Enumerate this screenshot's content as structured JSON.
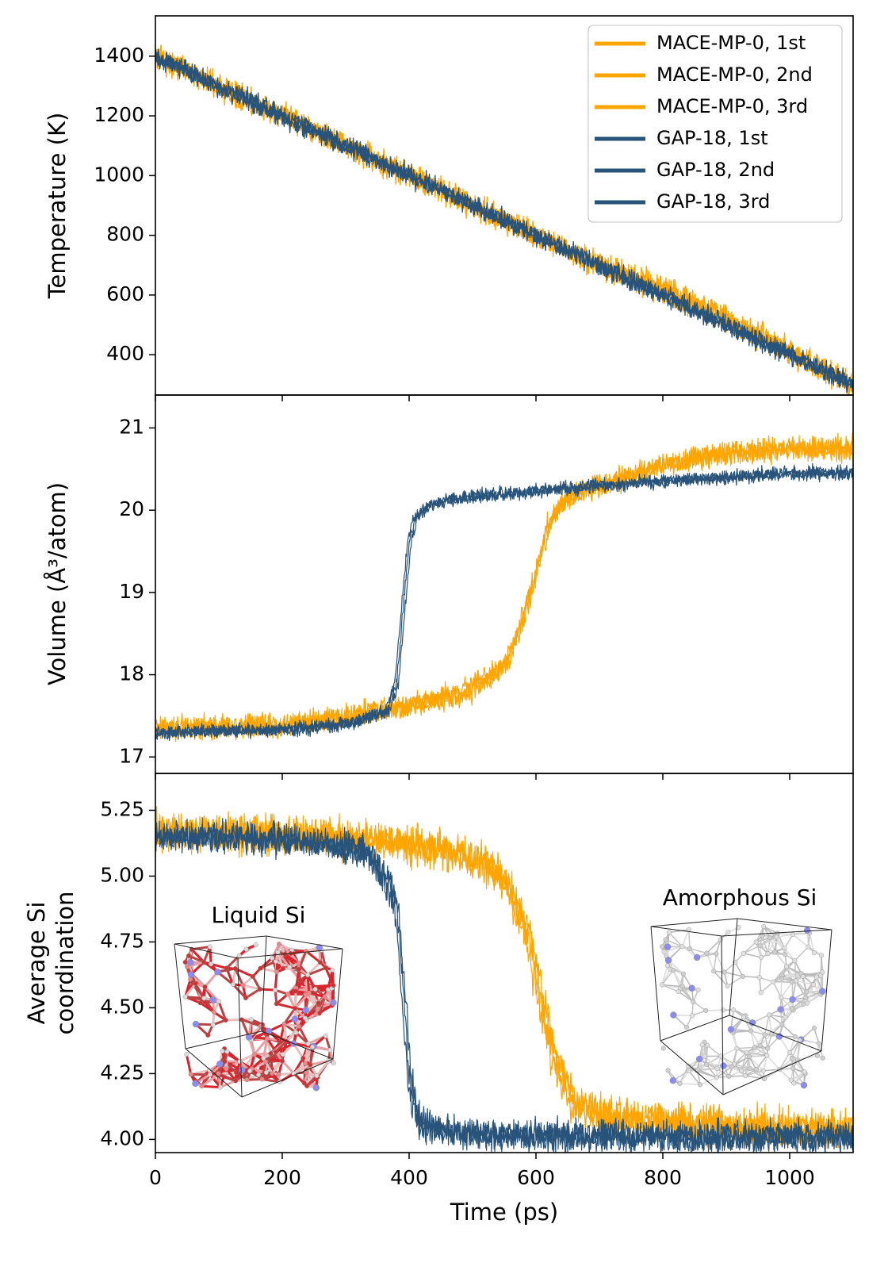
{
  "colors": {
    "mace": "#ffa500",
    "gap": "#28537a",
    "axis": "#000000",
    "liquid_bond": "#d9242c",
    "liquid_bond_light": "#eaa0a4",
    "amorphous_bond": "#c8c8c8",
    "minority_atom": "#8c8cf0"
  },
  "chart_data": [
    {
      "type": "line",
      "panel": "temperature",
      "title": "",
      "xlabel": "",
      "ylabel": "Temperature (K)",
      "xlim": [
        0,
        1100
      ],
      "ylim": [
        265,
        1535
      ],
      "xticks": [
        0,
        200,
        400,
        600,
        800,
        1000
      ],
      "yticks": [
        400,
        600,
        800,
        1000,
        1200,
        1400
      ],
      "ytick_labels": [
        "400",
        "600",
        "800",
        "1000",
        "1200",
        "1400"
      ],
      "legend_placement": "top-right",
      "series": [
        {
          "name": "MACE-MP-0, 1st",
          "color": "#ffa500",
          "noise": 35,
          "x": [
            0,
            100,
            200,
            300,
            400,
            500,
            600,
            700,
            800,
            900,
            1000,
            1100
          ],
          "y": [
            1400,
            1300,
            1200,
            1100,
            1000,
            900,
            800,
            700,
            620,
            520,
            410,
            300
          ]
        },
        {
          "name": "MACE-MP-0, 2nd",
          "color": "#ffa500",
          "noise": 35,
          "x": [
            0,
            100,
            200,
            300,
            400,
            500,
            600,
            700,
            800,
            900,
            1000,
            1100
          ],
          "y": [
            1405,
            1300,
            1200,
            1100,
            1000,
            900,
            800,
            700,
            615,
            520,
            410,
            300
          ]
        },
        {
          "name": "MACE-MP-0, 3rd",
          "color": "#ffa500",
          "noise": 35,
          "x": [
            0,
            100,
            200,
            300,
            400,
            500,
            600,
            700,
            800,
            900,
            1000,
            1100
          ],
          "y": [
            1395,
            1300,
            1200,
            1100,
            1000,
            900,
            800,
            700,
            625,
            525,
            415,
            300
          ]
        },
        {
          "name": "GAP-18, 1st",
          "color": "#28537a",
          "noise": 28,
          "x": [
            0,
            100,
            200,
            300,
            400,
            500,
            600,
            700,
            800,
            900,
            1000,
            1100
          ],
          "y": [
            1400,
            1300,
            1200,
            1100,
            1000,
            900,
            800,
            700,
            600,
            500,
            400,
            300
          ]
        },
        {
          "name": "GAP-18, 2nd",
          "color": "#28537a",
          "noise": 28,
          "x": [
            0,
            100,
            200,
            300,
            400,
            500,
            600,
            700,
            800,
            900,
            1000,
            1100
          ],
          "y": [
            1400,
            1300,
            1200,
            1100,
            1000,
            900,
            800,
            700,
            595,
            495,
            400,
            300
          ]
        },
        {
          "name": "GAP-18, 3rd",
          "color": "#28537a",
          "noise": 28,
          "x": [
            0,
            100,
            200,
            300,
            400,
            500,
            600,
            700,
            800,
            900,
            1000,
            1100
          ],
          "y": [
            1400,
            1300,
            1200,
            1100,
            1000,
            900,
            800,
            700,
            605,
            505,
            400,
            300
          ]
        }
      ]
    },
    {
      "type": "line",
      "panel": "volume",
      "title": "",
      "xlabel": "",
      "ylabel": "Volume (Å³/atom)",
      "xlim": [
        0,
        1100
      ],
      "ylim": [
        16.8,
        21.4
      ],
      "xticks": [
        0,
        200,
        400,
        600,
        800,
        1000
      ],
      "yticks": [
        17,
        18,
        19,
        20,
        21
      ],
      "ytick_labels": [
        "17",
        "18",
        "19",
        "20",
        "21"
      ],
      "series": [
        {
          "name": "MACE-MP-0, 1st",
          "color": "#ffa500",
          "noise": 0.12,
          "x": [
            0,
            200,
            300,
            380,
            450,
            500,
            550,
            580,
            600,
            620,
            650,
            700,
            800,
            900,
            1000,
            1100
          ],
          "y": [
            17.35,
            17.38,
            17.5,
            17.6,
            17.7,
            17.85,
            18.1,
            18.7,
            19.3,
            19.85,
            20.15,
            20.3,
            20.55,
            20.7,
            20.75,
            20.75
          ]
        },
        {
          "name": "MACE-MP-0, 2nd",
          "color": "#ffa500",
          "noise": 0.12,
          "x": [
            0,
            200,
            300,
            380,
            450,
            500,
            540,
            570,
            595,
            615,
            640,
            700,
            800,
            900,
            1000,
            1100
          ],
          "y": [
            17.35,
            17.38,
            17.5,
            17.6,
            17.68,
            17.8,
            18.0,
            18.5,
            19.1,
            19.7,
            20.1,
            20.3,
            20.55,
            20.7,
            20.75,
            20.75
          ]
        },
        {
          "name": "MACE-MP-0, 3rd",
          "color": "#ffa500",
          "noise": 0.12,
          "x": [
            0,
            200,
            300,
            380,
            450,
            500,
            560,
            590,
            610,
            630,
            660,
            700,
            800,
            900,
            1000,
            1100
          ],
          "y": [
            17.35,
            17.38,
            17.5,
            17.6,
            17.72,
            17.88,
            18.2,
            18.9,
            19.5,
            19.95,
            20.2,
            20.3,
            20.55,
            20.7,
            20.75,
            20.75
          ]
        },
        {
          "name": "GAP-18, 1st",
          "color": "#28537a",
          "noise": 0.07,
          "x": [
            0,
            200,
            300,
            365,
            380,
            392,
            400,
            410,
            430,
            470,
            550,
            700,
            800,
            900,
            1000,
            1100
          ],
          "y": [
            17.3,
            17.33,
            17.4,
            17.55,
            17.9,
            18.9,
            19.6,
            19.9,
            20.05,
            20.15,
            20.2,
            20.3,
            20.35,
            20.4,
            20.45,
            20.45
          ]
        },
        {
          "name": "GAP-18, 2nd",
          "color": "#28537a",
          "noise": 0.07,
          "x": [
            0,
            200,
            300,
            368,
            383,
            395,
            403,
            413,
            433,
            470,
            550,
            700,
            800,
            900,
            1000,
            1100
          ],
          "y": [
            17.3,
            17.33,
            17.4,
            17.55,
            17.9,
            18.9,
            19.6,
            19.9,
            20.05,
            20.15,
            20.2,
            20.3,
            20.35,
            20.4,
            20.45,
            20.45
          ]
        },
        {
          "name": "GAP-18, 3rd",
          "color": "#28537a",
          "noise": 0.07,
          "x": [
            0,
            200,
            300,
            362,
            377,
            389,
            397,
            407,
            427,
            470,
            550,
            700,
            800,
            900,
            1000,
            1100
          ],
          "y": [
            17.3,
            17.33,
            17.4,
            17.55,
            17.9,
            18.9,
            19.6,
            19.9,
            20.05,
            20.15,
            20.2,
            20.3,
            20.35,
            20.4,
            20.45,
            20.45
          ]
        }
      ]
    },
    {
      "type": "line",
      "panel": "coordination",
      "title": "",
      "xlabel": "Time (ps)",
      "ylabel": [
        "Average Si",
        "coordination"
      ],
      "xlim": [
        0,
        1100
      ],
      "ylim": [
        3.95,
        5.39
      ],
      "xticks": [
        0,
        200,
        400,
        600,
        800,
        1000
      ],
      "xtick_labels": [
        "0",
        "200",
        "400",
        "600",
        "800",
        "1000"
      ],
      "yticks": [
        4.0,
        4.25,
        4.5,
        4.75,
        5.0,
        5.25
      ],
      "ytick_labels": [
        "4.00",
        "4.25",
        "4.50",
        "4.75",
        "5.00",
        "5.25"
      ],
      "series": [
        {
          "name": "MACE-MP-0, 1st",
          "color": "#ffa500",
          "noise": 0.06,
          "x": [
            0,
            200,
            380,
            450,
            520,
            560,
            590,
            610,
            630,
            660,
            700,
            800,
            900,
            1000,
            1100
          ],
          "y": [
            5.17,
            5.16,
            5.13,
            5.1,
            5.05,
            4.95,
            4.75,
            4.5,
            4.3,
            4.15,
            4.09,
            4.07,
            4.05,
            4.04,
            4.04
          ]
        },
        {
          "name": "MACE-MP-0, 2nd",
          "color": "#ffa500",
          "noise": 0.06,
          "x": [
            0,
            200,
            380,
            450,
            520,
            555,
            585,
            605,
            625,
            655,
            700,
            800,
            900,
            1000,
            1100
          ],
          "y": [
            5.17,
            5.16,
            5.13,
            5.1,
            5.05,
            4.95,
            4.75,
            4.5,
            4.3,
            4.15,
            4.09,
            4.07,
            4.05,
            4.04,
            4.04
          ]
        },
        {
          "name": "MACE-MP-0, 3rd",
          "color": "#ffa500",
          "noise": 0.06,
          "x": [
            0,
            200,
            380,
            450,
            520,
            565,
            595,
            615,
            635,
            665,
            705,
            800,
            900,
            1000,
            1100
          ],
          "y": [
            5.17,
            5.16,
            5.13,
            5.1,
            5.05,
            4.95,
            4.75,
            4.5,
            4.3,
            4.15,
            4.09,
            4.07,
            4.05,
            4.04,
            4.04
          ]
        },
        {
          "name": "GAP-18, 1st",
          "color": "#28537a",
          "noise": 0.05,
          "x": [
            0,
            200,
            330,
            360,
            380,
            390,
            400,
            410,
            420,
            440,
            500,
            600,
            800,
            1100
          ],
          "y": [
            5.15,
            5.14,
            5.1,
            5.0,
            4.9,
            4.6,
            4.25,
            4.1,
            4.06,
            4.04,
            4.02,
            4.015,
            4.01,
            4.01
          ]
        },
        {
          "name": "GAP-18, 2nd",
          "color": "#28537a",
          "noise": 0.05,
          "x": [
            0,
            200,
            330,
            363,
            383,
            393,
            403,
            413,
            423,
            443,
            500,
            600,
            800,
            1100
          ],
          "y": [
            5.15,
            5.14,
            5.1,
            5.0,
            4.9,
            4.6,
            4.25,
            4.1,
            4.06,
            4.04,
            4.02,
            4.015,
            4.01,
            4.01
          ]
        },
        {
          "name": "GAP-18, 3rd",
          "color": "#28537a",
          "noise": 0.05,
          "x": [
            0,
            200,
            330,
            357,
            377,
            387,
            397,
            407,
            417,
            437,
            500,
            600,
            800,
            1100
          ],
          "y": [
            5.15,
            5.14,
            5.1,
            5.0,
            4.9,
            4.6,
            4.25,
            4.1,
            4.06,
            4.04,
            4.02,
            4.015,
            4.01,
            4.01
          ]
        }
      ],
      "annotations": [
        {
          "text": "Liquid Si",
          "inset": "liquid"
        },
        {
          "text": "Amorphous Si",
          "inset": "amorphous"
        }
      ]
    }
  ]
}
